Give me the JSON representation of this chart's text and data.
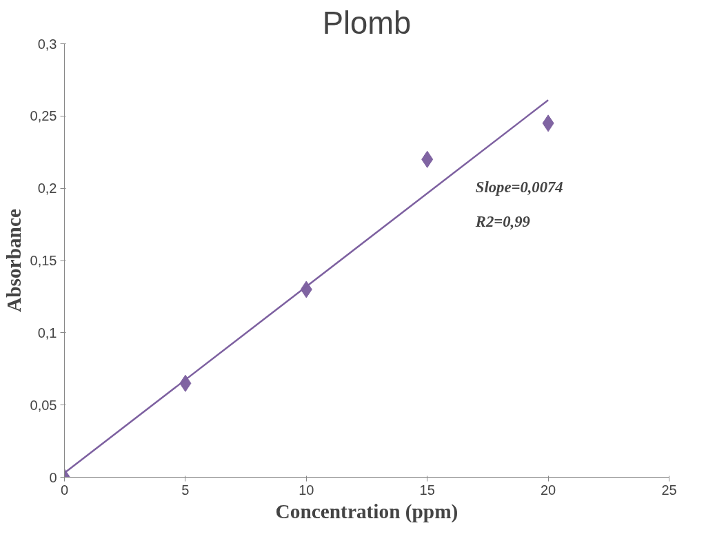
{
  "chart_data": {
    "type": "scatter",
    "title": "Plomb",
    "xlabel": "Concentration (ppm)",
    "ylabel": "Absorbance",
    "x": [
      0,
      5,
      10,
      15,
      20
    ],
    "series": [
      {
        "color": "#8064a2",
        "values": [
          0,
          0.065,
          0.13,
          0.22,
          0.245
        ]
      },
      {
        "type": "line",
        "marker": "none",
        "color": "#7d60a0",
        "x": [
          0,
          20
        ],
        "values": [
          0.003,
          0.261
        ]
      }
    ],
    "marker": "diamond",
    "grid": false,
    "xlim": [
      0,
      25
    ],
    "xticks": [
      0,
      5,
      10,
      15,
      20,
      25
    ],
    "ylim": [
      0,
      0.3
    ],
    "yticks": [
      0,
      {
        "value": 0.05,
        "label": "0,05"
      },
      {
        "value": 0.1,
        "label": "0,1"
      },
      {
        "value": 0.15,
        "label": "0,15"
      },
      {
        "value": 0.2,
        "label": "0,2"
      },
      {
        "value": 0.25,
        "label": "0,25"
      },
      {
        "value": 0.3,
        "label": "0,3"
      }
    ],
    "annotations": [
      "Slope=0,0074",
      "R2=0,99"
    ]
  }
}
